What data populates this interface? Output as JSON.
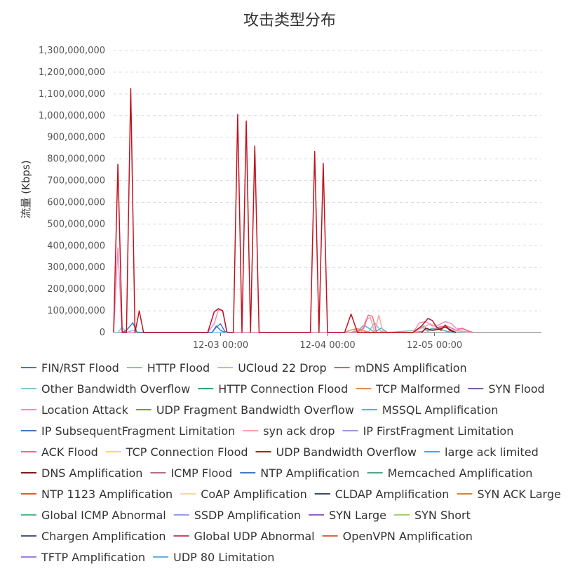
{
  "chart_data": {
    "type": "line",
    "title": "攻击类型分布",
    "xlabel": "",
    "ylabel": "流量 (Kbps)",
    "ylim": [
      0,
      1300000000
    ],
    "y_ticks": [
      0,
      100000000,
      200000000,
      300000000,
      400000000,
      500000000,
      600000000,
      700000000,
      800000000,
      900000000,
      1000000000,
      1100000000,
      1200000000,
      1300000000
    ],
    "y_tick_labels": [
      "0",
      "100,000,000",
      "200,000,000",
      "300,000,000",
      "400,000,000",
      "500,000,000",
      "600,000,000",
      "700,000,000",
      "800,000,000",
      "900,000,000",
      "1,000,000,000",
      "1,100,000,000",
      "1,200,000,000",
      "1,300,000,000"
    ],
    "xlim": [
      0,
      1.0
    ],
    "x_ticks": [
      0.25,
      0.5,
      0.75
    ],
    "x_tick_labels": [
      "12-03 00:00",
      "12-04 00:00",
      "12-05 00:00"
    ],
    "grid": true,
    "legend_position": "bottom",
    "series": [
      {
        "name": "FIN/RST Flood",
        "color": "#4a72c8",
        "x": [],
        "values": []
      },
      {
        "name": "HTTP Flood",
        "color": "#91cc75",
        "x": [],
        "values": []
      },
      {
        "name": "UCloud 22 Drop",
        "color": "#f2b944",
        "x": [],
        "values": []
      },
      {
        "name": "mDNS Amplification",
        "color": "#e8585f",
        "x": [],
        "values": []
      },
      {
        "name": "Other Bandwidth Overflow",
        "color": "#7ec9d8",
        "x": [
          0.0,
          0.01,
          0.02,
          0.03,
          0.045,
          0.06,
          0.07,
          0.565,
          0.58,
          0.595,
          0.61,
          0.625,
          0.64,
          0.705,
          0.72,
          0.735,
          0.75,
          0.76,
          0.77,
          0.78,
          0.8,
          0.82,
          0.84
        ],
        "values": [
          0,
          0,
          25000000,
          0,
          10000000,
          0,
          0,
          0,
          10000000,
          0,
          45000000,
          5000000,
          0,
          10000000,
          25000000,
          5000000,
          20000000,
          15000000,
          10000000,
          5000000,
          3000000,
          2000000,
          0
        ]
      },
      {
        "name": "HTTP Connection Flood",
        "color": "#3ba272",
        "x": [],
        "values": []
      },
      {
        "name": "TCP Malformed",
        "color": "#f08a4b",
        "x": [
          0.54,
          0.555,
          0.57,
          0.585,
          0.6,
          0.615
        ],
        "values": [
          0,
          12000000,
          18000000,
          8000000,
          0,
          0
        ]
      },
      {
        "name": "SYN Flood",
        "color": "#7a5fb0",
        "x": [],
        "values": []
      },
      {
        "name": "Location Attack",
        "color": "#f18bbf",
        "x": [
          0.0,
          0.01,
          0.02,
          0.03,
          0.22,
          0.235,
          0.245,
          0.255,
          0.265,
          0.5,
          0.52,
          0.7,
          0.715,
          0.73,
          0.745,
          0.76,
          0.775,
          0.79,
          0.8,
          0.82,
          0.84
        ],
        "values": [
          0,
          390000000,
          0,
          0,
          0,
          40000000,
          105000000,
          100000000,
          0,
          0,
          0,
          0,
          45000000,
          50000000,
          30000000,
          35000000,
          50000000,
          40000000,
          20000000,
          15000000,
          0
        ]
      },
      {
        "name": "UDP Fragment Bandwidth Overflow",
        "color": "#6e9e34",
        "x": [],
        "values": []
      },
      {
        "name": "MSSQL Amplification",
        "color": "#5aaed4",
        "x": [
          0.555,
          0.57,
          0.585,
          0.6,
          0.61,
          0.625,
          0.64,
          0.7,
          0.715,
          0.725,
          0.735,
          0.745,
          0.755,
          0.77,
          0.79
        ],
        "values": [
          0,
          5000000,
          35000000,
          15000000,
          0,
          20000000,
          0,
          0,
          15000000,
          30000000,
          10000000,
          20000000,
          15000000,
          10000000,
          0
        ]
      },
      {
        "name": "IP SubsequentFragment Limitation",
        "color": "#3a7bc8",
        "x": [
          0.02,
          0.03,
          0.045,
          0.055,
          0.23,
          0.24,
          0.25,
          0.26
        ],
        "values": [
          0,
          10000000,
          45000000,
          0,
          0,
          30000000,
          10000000,
          0
        ]
      },
      {
        "name": "syn ack drop",
        "color": "#f4a6a6",
        "x": [
          0.555,
          0.57,
          0.58,
          0.59,
          0.6,
          0.61,
          0.62,
          0.63,
          0.7,
          0.72,
          0.74,
          0.76,
          0.78,
          0.8,
          0.82,
          0.84
        ],
        "values": [
          0,
          15000000,
          5000000,
          60000000,
          70000000,
          0,
          80000000,
          0,
          0,
          20000000,
          40000000,
          20000000,
          30000000,
          10000000,
          5000000,
          0
        ]
      },
      {
        "name": "IP FirstFragment Limitation",
        "color": "#9a9ae6",
        "x": [],
        "values": []
      },
      {
        "name": "ACK Flood",
        "color": "#ef6a88",
        "x": [
          0.555,
          0.57,
          0.585,
          0.595,
          0.605,
          0.615,
          0.625,
          0.7,
          0.72,
          0.73,
          0.745,
          0.76,
          0.775,
          0.79,
          0.8,
          0.815,
          0.83,
          0.84
        ],
        "values": [
          0,
          5000000,
          20000000,
          80000000,
          75000000,
          0,
          0,
          0,
          5000000,
          15000000,
          10000000,
          25000000,
          30000000,
          20000000,
          10000000,
          20000000,
          5000000,
          0
        ]
      },
      {
        "name": "TCP Connection Flood",
        "color": "#f7d774",
        "x": [],
        "values": []
      },
      {
        "name": "UDP Bandwidth Overflow",
        "color": "#c0141f",
        "x": [
          0.0,
          0.01,
          0.02,
          0.03,
          0.04,
          0.05,
          0.06,
          0.07,
          0.22,
          0.235,
          0.245,
          0.255,
          0.265,
          0.28,
          0.29,
          0.3,
          0.31,
          0.32,
          0.33,
          0.34,
          0.35,
          0.36,
          0.46,
          0.47,
          0.48,
          0.49,
          0.5,
          0.51,
          0.52,
          0.53,
          0.54,
          0.555,
          0.57,
          0.585,
          0.6,
          0.7,
          0.72,
          0.735,
          0.745,
          0.755,
          0.765,
          0.775,
          0.785,
          0.8
        ],
        "values": [
          0,
          775000000,
          0,
          0,
          1125000000,
          0,
          100000000,
          0,
          0,
          95000000,
          110000000,
          100000000,
          0,
          0,
          1005000000,
          0,
          975000000,
          0,
          860000000,
          0,
          0,
          0,
          0,
          835000000,
          0,
          780000000,
          0,
          0,
          0,
          0,
          0,
          85000000,
          0,
          0,
          0,
          0,
          30000000,
          65000000,
          55000000,
          25000000,
          10000000,
          35000000,
          10000000,
          0
        ]
      },
      {
        "name": "large ack limited",
        "color": "#5b9be0",
        "x": [],
        "values": []
      },
      {
        "name": "DNS Amplification",
        "color": "#7d1a1a",
        "x": [
          0.72,
          0.73,
          0.745,
          0.76,
          0.775,
          0.79,
          0.8
        ],
        "values": [
          0,
          20000000,
          10000000,
          15000000,
          25000000,
          10000000,
          0
        ]
      },
      {
        "name": "ICMP Flood",
        "color": "#b0707e",
        "x": [],
        "values": []
      },
      {
        "name": "NTP Amplification",
        "color": "#3f7bbf",
        "x": [
          0.23,
          0.24,
          0.25,
          0.26,
          0.27
        ],
        "values": [
          0,
          25000000,
          40000000,
          5000000,
          0
        ]
      },
      {
        "name": "Memcached Amplification",
        "color": "#4aa889",
        "x": [],
        "values": []
      },
      {
        "name": "NTP 1123 Amplification",
        "color": "#e05a30",
        "x": [],
        "values": []
      },
      {
        "name": "CoAP Amplification",
        "color": "#f5dc8a",
        "x": [],
        "values": []
      },
      {
        "name": "CLDAP Amplification",
        "color": "#3d4a63",
        "x": [],
        "values": []
      },
      {
        "name": "SYN ACK Large",
        "color": "#c48a3c",
        "x": [],
        "values": []
      },
      {
        "name": "Global ICMP Abnormal",
        "color": "#4dbd84",
        "x": [],
        "values": []
      },
      {
        "name": "SSDP Amplification",
        "color": "#8e9ff0",
        "x": [],
        "values": []
      },
      {
        "name": "SYN Large",
        "color": "#9a5cc6",
        "x": [],
        "values": []
      },
      {
        "name": "SYN Short",
        "color": "#9fd36a",
        "x": [],
        "values": []
      },
      {
        "name": "Chargen Amplification",
        "color": "#4c5a78",
        "x": [],
        "values": []
      },
      {
        "name": "Global UDP Abnormal",
        "color": "#d8416a",
        "x": [],
        "values": []
      },
      {
        "name": "OpenVPN Amplification",
        "color": "#e0643c",
        "x": [],
        "values": []
      },
      {
        "name": "TFTP Amplification",
        "color": "#a07ee8",
        "x": [],
        "values": []
      },
      {
        "name": "UDP 80 Limitation",
        "color": "#6aaee8",
        "x": [],
        "values": []
      }
    ]
  }
}
